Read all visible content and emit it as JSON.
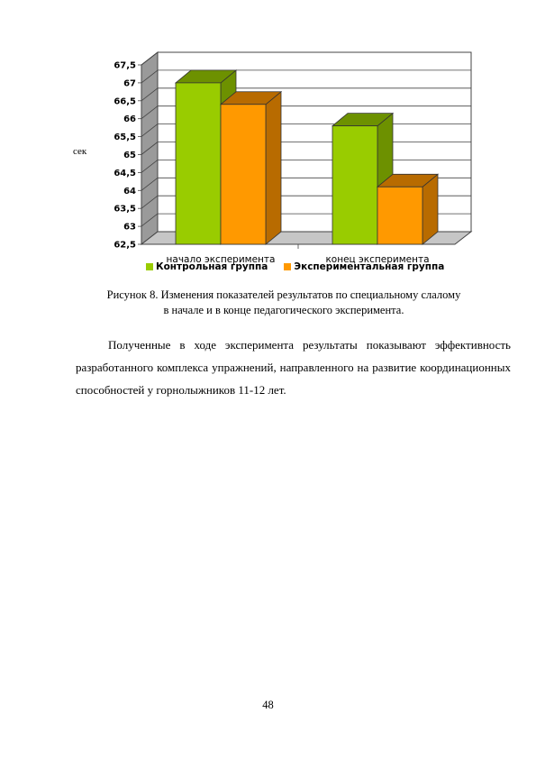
{
  "chart_data": {
    "type": "bar",
    "categories": [
      "начало эксперимента",
      "конец эксперимента"
    ],
    "series": [
      {
        "name": "Контрольная группа",
        "values": [
          67.0,
          65.8
        ],
        "color": "#99cc00",
        "dark": "#6d9100"
      },
      {
        "name": "Экспериментальная группа",
        "values": [
          66.4,
          64.1
        ],
        "color": "#ff9900",
        "dark": "#b86b00"
      }
    ],
    "ylabel": "сек",
    "ylim": [
      62.5,
      67.5
    ],
    "yticks": [
      "62,5",
      "63",
      "63,5",
      "64",
      "64,5",
      "65",
      "65,5",
      "66",
      "66,5",
      "67",
      "67,5"
    ],
    "grid": true,
    "legend_position": "bottom"
  },
  "caption": {
    "line1": "Рисунок 8. Изменения показателей результатов по специальному слалому",
    "line2": "в начале и в конце педагогического эксперимента."
  },
  "paragraph": "Полученные в ходе эксперимента результаты показывают эффективность разработанного комплекса упражнений, направленного на развитие координационных способностей у горнолыжников 11-12 лет.",
  "page_number": "48"
}
